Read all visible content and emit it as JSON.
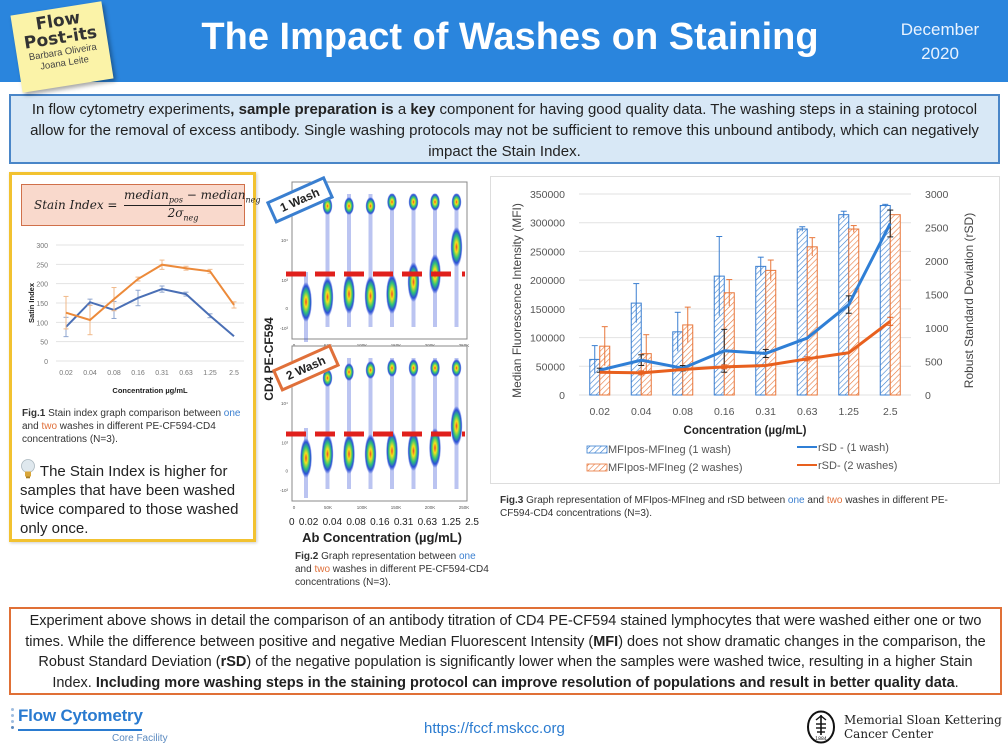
{
  "header": {
    "postit": {
      "line1": "Flow",
      "line2": "Post-its",
      "author1": "Barbara Oliveira",
      "author2": "Joana Leite"
    },
    "title": "The Impact of Washes on Staining",
    "date_month": "December",
    "date_year": "2020"
  },
  "intro": {
    "p1": "In flow cytometry experiments",
    "p2": ", sample preparation is",
    "p3": " a ",
    "p4": "key",
    "p5": " component for having good quality data. The washing steps in a staining protocol allow for the removal of excess antibody. Single washing protocols may not be sufficient to remove this unbound antibody, which can negatively impact the Stain Index."
  },
  "formula": {
    "lhs": "Stain Index =",
    "num_a": "median",
    "num_a_sub": "pos",
    "minus": " − ",
    "num_b": "median",
    "num_b_sub": "neg",
    "den": "2σ",
    "den_sub": "neg"
  },
  "fig1": {
    "caption_bold": "Fig.1",
    "caption_1": " Stain index graph comparison between ",
    "caption_one": "one",
    "caption_and": " and ",
    "caption_two": "two",
    "caption_2": " washes in different PE-CF594-CD4 concentrations (N=3).",
    "note": "The Stain Index is higher for samples that have been washed twice compared to those washed only once."
  },
  "fig2": {
    "tag_1": "1 Wash",
    "tag_2": "2 Wash",
    "ylabel": "CD4  PE-CF594",
    "y_ticks": [
      "10⁴",
      "10³",
      "0",
      "-10³"
    ],
    "x_ticks": [
      "0",
      "50K",
      "100K",
      "150K",
      "200K",
      "250K"
    ],
    "conc_ticks": [
      "0",
      "0.02",
      "0.04",
      "0.08",
      "0.16",
      "0.31",
      "0.63",
      "1.25",
      "2.5"
    ],
    "xlabel": "Ab Concentration (µg/mL)",
    "caption_bold": "Fig.2",
    "caption_1": " Graph representation between ",
    "caption_one": "one",
    "caption_and": " and ",
    "caption_two": "two",
    "caption_2": " washes in different PE-CF594-CD4 concentrations (N=3)."
  },
  "fig3": {
    "caption_bold": "Fig.3",
    "caption_1": "  Graph representation of MFIpos-MFIneg and rSD between ",
    "caption_one": "one",
    "caption_and": " and ",
    "caption_two": "two",
    "caption_2": " washes in different PE-CF594-CD4 concentrations (N=3)."
  },
  "conclusion": {
    "s1": "Experiment above shows in detail the comparison of an antibody titration of CD4 PE-CF594 stained lymphocytes that were washed either one or two times. While the difference between positive and negative Median Fluorescent Intensity (",
    "s2": "MFI",
    "s3": ") does not show dramatic changes in the comparison, the Robust Standard Deviation (",
    "s4": "rSD",
    "s5": ") of the negative population is significantly lower when the samples were washed twice, resulting in a higher Stain Index. ",
    "s6": "Including more washing steps in the staining protocol can improve resolution of populations and result in better quality data",
    "s7": "."
  },
  "footer": {
    "fc_title": "Flow Cytometry",
    "fc_sub": "Core Facility",
    "url": "https://fccf.mskcc.org",
    "mskcc_line1": "Memorial Sloan Kettering",
    "mskcc_line2": "Cancer Center",
    "mskcc_year": "1884"
  },
  "colors": {
    "header_blue": "#2a85dd",
    "series_blue": "#3a7fd0",
    "series_orange": "#e8773a",
    "fig1_blue": "#4a6fb5",
    "fig1_orange": "#ec8a3a",
    "gate_red": "#e0201c"
  },
  "chart_data": [
    {
      "type": "line",
      "title": "Stain Index",
      "xlabel": "Concentration µg/mL",
      "ylabel": "Satin Index",
      "categories": [
        "0.02",
        "0.04",
        "0.08",
        "0.16",
        "0.31",
        "0.63",
        "1.25",
        "2.5"
      ],
      "ylim": [
        0,
        300
      ],
      "y_ticks": [
        0,
        50,
        100,
        150,
        200,
        250,
        300
      ],
      "grid": true,
      "series": [
        {
          "name": "1 wash",
          "values": [
            88,
            152,
            132,
            163,
            186,
            173,
            117,
            64
          ],
          "errors": [
            25,
            8,
            22,
            20,
            8,
            5,
            5,
            0
          ]
        },
        {
          "name": "2 washes",
          "values": [
            125,
            106,
            160,
            212,
            249,
            240,
            232,
            145
          ],
          "errors": [
            42,
            38,
            30,
            5,
            12,
            5,
            5,
            8
          ]
        }
      ]
    },
    {
      "type": "bar",
      "title": "",
      "xlabel": "Concentration (µg/mL)",
      "ylabel": "Median Fluorescence Intensity (MFI)",
      "y2label": "Robust Standard Deviation (rSD)",
      "categories": [
        "0.02",
        "0.04",
        "0.08",
        "0.16",
        "0.31",
        "0.63",
        "1.25",
        "2.5"
      ],
      "ylim": [
        0,
        350000
      ],
      "y_ticks": [
        0,
        50000,
        100000,
        150000,
        200000,
        250000,
        300000,
        350000
      ],
      "y2lim": [
        0,
        3000
      ],
      "y2_ticks": [
        0,
        500,
        1000,
        1500,
        2000,
        2500,
        3000
      ],
      "grid": true,
      "legend": "bottom",
      "series": [
        {
          "name": "MFIpos-MFIneg (1 wash)",
          "kind": "bar",
          "axis": "left",
          "values": [
            62000,
            160000,
            110000,
            207000,
            224000,
            289000,
            314000,
            330000
          ],
          "errors": [
            24000,
            34000,
            34000,
            69000,
            16000,
            4000,
            6000,
            2000
          ]
        },
        {
          "name": "MFIpos-MFIneg (2 washes)",
          "kind": "bar",
          "axis": "left",
          "values": [
            85000,
            72000,
            122000,
            178000,
            217000,
            258000,
            289000,
            314000
          ],
          "errors": [
            34000,
            33000,
            31000,
            23000,
            18000,
            16000,
            6000,
            0
          ]
        },
        {
          "name": "rSD - (1 wash)",
          "kind": "line",
          "axis": "right",
          "values": [
            370,
            520,
            400,
            660,
            620,
            850,
            1350,
            2560
          ],
          "errors": [
            30,
            80,
            40,
            320,
            60,
            0,
            130,
            200
          ]
        },
        {
          "name": "rSD- (2 washes)",
          "kind": "line",
          "axis": "right",
          "values": [
            340,
            330,
            380,
            420,
            440,
            540,
            630,
            1100
          ],
          "errors": [
            0,
            30,
            0,
            30,
            0,
            30,
            0,
            60
          ]
        }
      ]
    }
  ]
}
